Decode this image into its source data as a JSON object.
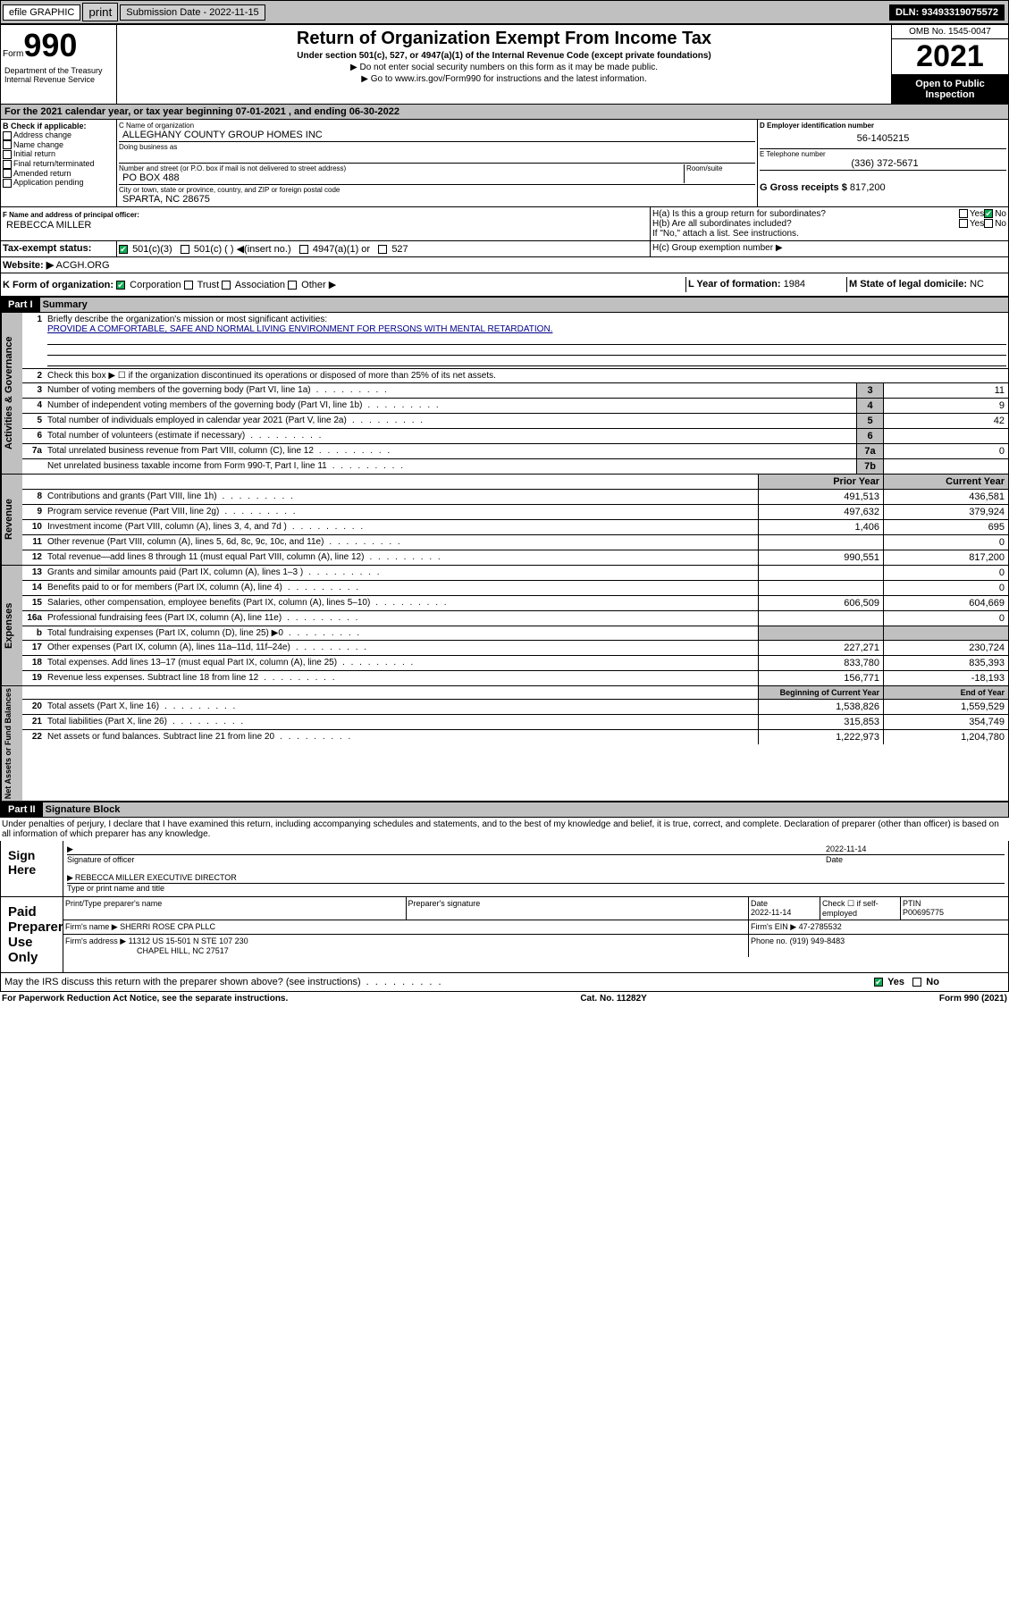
{
  "topbar": {
    "efile": "efile GRAPHIC",
    "print": "print",
    "submission": "Submission Date - 2022-11-15",
    "dln": "DLN: 93493319075572"
  },
  "header": {
    "form": "Form",
    "num": "990",
    "title": "Return of Organization Exempt From Income Tax",
    "sub": "Under section 501(c), 527, or 4947(a)(1) of the Internal Revenue Code (except private foundations)",
    "note1": "▶ Do not enter social security numbers on this form as it may be made public.",
    "note2": "▶ Go to www.irs.gov/Form990 for instructions and the latest information.",
    "dept": "Department of the Treasury\nInternal Revenue Service",
    "omb": "OMB No. 1545-0047",
    "year": "2021",
    "inspect": "Open to Public Inspection"
  },
  "A": "For the 2021 calendar year, or tax year beginning 07-01-2021   , and ending 06-30-2022",
  "B": {
    "label": "B Check if applicable:",
    "items": [
      "Address change",
      "Name change",
      "Initial return",
      "Final return/terminated",
      "Amended return",
      "Application pending"
    ]
  },
  "C": {
    "namelabel": "C Name of organization",
    "name": "ALLEGHANY COUNTY GROUP HOMES INC",
    "dba": "Doing business as",
    "addrlabel": "Number and street (or P.O. box if mail is not delivered to street address)",
    "room": "Room/suite",
    "addr": "PO BOX 488",
    "citylabel": "City or town, state or province, country, and ZIP or foreign postal code",
    "city": "SPARTA, NC  28675"
  },
  "D": {
    "label": "D Employer identification number",
    "val": "56-1405215"
  },
  "E": {
    "label": "E Telephone number",
    "val": "(336) 372-5671"
  },
  "G": {
    "label": "G Gross receipts $",
    "val": "817,200"
  },
  "F": {
    "label": "F  Name and address of principal officer:",
    "val": "REBECCA MILLER"
  },
  "H": {
    "a": "H(a)  Is this a group return for subordinates?",
    "b": "H(b)  Are all subordinates included?",
    "bnote": "If \"No,\" attach a list. See instructions.",
    "c": "H(c)  Group exemption number ▶",
    "yes": "Yes",
    "no": "No"
  },
  "I": {
    "label": "Tax-exempt status:",
    "v": "501(c)(3)",
    "opts": [
      "501(c) (  ) ◀(insert no.)",
      "4947(a)(1) or",
      "527"
    ]
  },
  "J": {
    "label": "Website: ▶",
    "val": "ACGH.ORG"
  },
  "K": {
    "label": "K Form of organization:",
    "opts": [
      "Corporation",
      "Trust",
      "Association",
      "Other ▶"
    ]
  },
  "L": {
    "label": "L Year of formation:",
    "val": "1984"
  },
  "M": {
    "label": "M State of legal domicile:",
    "val": "NC"
  },
  "part1": {
    "title": "Part I",
    "sub": "Summary"
  },
  "acts": {
    "label": "Activities & Governance",
    "l1": "Briefly describe the organization's mission or most significant activities:",
    "mission": "PROVIDE A COMFORTABLE, SAFE AND NORMAL LIVING ENVIRONMENT FOR PERSONS WITH MENTAL RETARDATION.",
    "l2": "Check this box ▶ ☐  if the organization discontinued its operations or disposed of more than 25% of its net assets.",
    "rows": [
      {
        "n": "3",
        "t": "Number of voting members of the governing body (Part VI, line 1a)",
        "b": "3",
        "v": "11"
      },
      {
        "n": "4",
        "t": "Number of independent voting members of the governing body (Part VI, line 1b)",
        "b": "4",
        "v": "9"
      },
      {
        "n": "5",
        "t": "Total number of individuals employed in calendar year 2021 (Part V, line 2a)",
        "b": "5",
        "v": "42"
      },
      {
        "n": "6",
        "t": "Total number of volunteers (estimate if necessary)",
        "b": "6",
        "v": ""
      },
      {
        "n": "7a",
        "t": "Total unrelated business revenue from Part VIII, column (C), line 12",
        "b": "7a",
        "v": "0"
      },
      {
        "n": "",
        "t": "Net unrelated business taxable income from Form 990-T, Part I, line 11",
        "b": "7b",
        "v": ""
      }
    ]
  },
  "rev": {
    "label": "Revenue",
    "hdr1": "Prior Year",
    "hdr2": "Current Year",
    "rows": [
      {
        "n": "8",
        "t": "Contributions and grants (Part VIII, line 1h)",
        "p": "491,513",
        "c": "436,581"
      },
      {
        "n": "9",
        "t": "Program service revenue (Part VIII, line 2g)",
        "p": "497,632",
        "c": "379,924"
      },
      {
        "n": "10",
        "t": "Investment income (Part VIII, column (A), lines 3, 4, and 7d )",
        "p": "1,406",
        "c": "695"
      },
      {
        "n": "11",
        "t": "Other revenue (Part VIII, column (A), lines 5, 6d, 8c, 9c, 10c, and 11e)",
        "p": "",
        "c": "0"
      },
      {
        "n": "12",
        "t": "Total revenue—add lines 8 through 11 (must equal Part VIII, column (A), line 12)",
        "p": "990,551",
        "c": "817,200"
      }
    ]
  },
  "exp": {
    "label": "Expenses",
    "rows": [
      {
        "n": "13",
        "t": "Grants and similar amounts paid (Part IX, column (A), lines 1–3 )",
        "p": "",
        "c": "0"
      },
      {
        "n": "14",
        "t": "Benefits paid to or for members (Part IX, column (A), line 4)",
        "p": "",
        "c": "0"
      },
      {
        "n": "15",
        "t": "Salaries, other compensation, employee benefits (Part IX, column (A), lines 5–10)",
        "p": "606,509",
        "c": "604,669"
      },
      {
        "n": "16a",
        "t": "Professional fundraising fees (Part IX, column (A), line 11e)",
        "p": "",
        "c": "0"
      },
      {
        "n": "b",
        "t": "Total fundraising expenses (Part IX, column (D), line 25) ▶0",
        "p": "grey",
        "c": "grey"
      },
      {
        "n": "17",
        "t": "Other expenses (Part IX, column (A), lines 11a–11d, 11f–24e)",
        "p": "227,271",
        "c": "230,724"
      },
      {
        "n": "18",
        "t": "Total expenses. Add lines 13–17 (must equal Part IX, column (A), line 25)",
        "p": "833,780",
        "c": "835,393"
      },
      {
        "n": "19",
        "t": "Revenue less expenses. Subtract line 18 from line 12",
        "p": "156,771",
        "c": "-18,193"
      }
    ]
  },
  "net": {
    "label": "Net Assets or Fund Balances",
    "hdr1": "Beginning of Current Year",
    "hdr2": "End of Year",
    "rows": [
      {
        "n": "20",
        "t": "Total assets (Part X, line 16)",
        "p": "1,538,826",
        "c": "1,559,529"
      },
      {
        "n": "21",
        "t": "Total liabilities (Part X, line 26)",
        "p": "315,853",
        "c": "354,749"
      },
      {
        "n": "22",
        "t": "Net assets or fund balances. Subtract line 21 from line 20",
        "p": "1,222,973",
        "c": "1,204,780"
      }
    ]
  },
  "part2": {
    "title": "Part II",
    "sub": "Signature Block",
    "decl": "Under penalties of perjury, I declare that I have examined this return, including accompanying schedules and statements, and to the best of my knowledge and belief, it is true, correct, and complete. Declaration of preparer (other than officer) is based on all information of which preparer has any knowledge."
  },
  "sign": {
    "here": "Sign Here",
    "sigoff": "Signature of officer",
    "date": "Date",
    "dateval": "2022-11-14",
    "name": "REBECCA MILLER  EXECUTIVE DIRECTOR",
    "namelabel": "Type or print name and title"
  },
  "paid": {
    "label": "Paid Preparer Use Only",
    "h1": "Print/Type preparer's name",
    "h2": "Preparer's signature",
    "h3": "Date",
    "dateval": "2022-11-14",
    "h4": "Check ☐ if self-employed",
    "h5": "PTIN",
    "ptin": "P00695775",
    "firm": "Firm's name   ▶",
    "firmval": "SHERRI ROSE CPA PLLC",
    "ein": "Firm's EIN ▶",
    "einval": "47-2785532",
    "addr": "Firm's address ▶",
    "addrval": "11312 US 15-501 N STE 107 230",
    "city": "CHAPEL HILL, NC  27517",
    "phone": "Phone no.",
    "phoneval": "(919) 949-8483"
  },
  "foot": {
    "q": "May the IRS discuss this return with the preparer shown above? (see instructions)",
    "yes": "Yes",
    "no": "No",
    "pra": "For Paperwork Reduction Act Notice, see the separate instructions.",
    "cat": "Cat. No. 11282Y",
    "form": "Form 990 (2021)"
  }
}
